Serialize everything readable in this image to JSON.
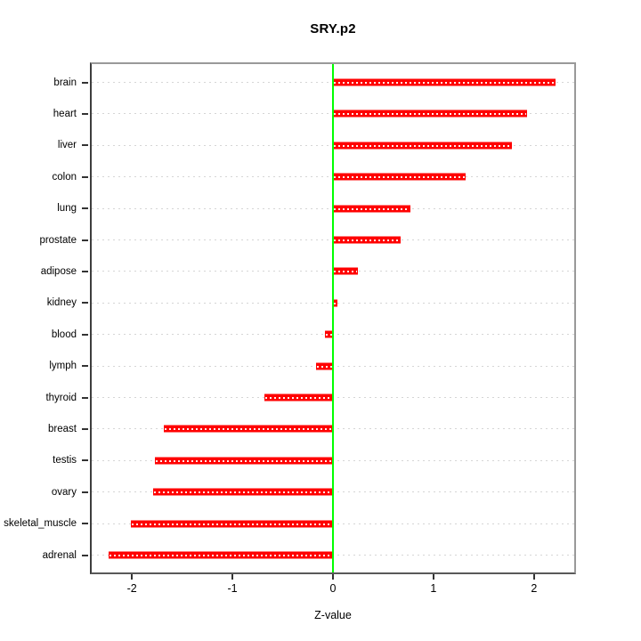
{
  "title": "SRY.p2",
  "chart_data": {
    "type": "bar",
    "orientation": "horizontal",
    "title": "SRY.p2",
    "xlabel": "Z-value",
    "ylabel": "",
    "categories": [
      "brain",
      "heart",
      "liver",
      "colon",
      "lung",
      "prostate",
      "adipose",
      "kidney",
      "blood",
      "lymph",
      "thyroid",
      "breast",
      "testis",
      "ovary",
      "skeletal_muscle",
      "adrenal"
    ],
    "values": [
      2.21,
      1.93,
      1.78,
      1.32,
      0.77,
      0.67,
      0.25,
      0.04,
      -0.08,
      -0.17,
      -0.68,
      -1.68,
      -1.77,
      -1.79,
      -2.01,
      -2.23
    ],
    "xlim": [
      -2.4,
      2.4
    ],
    "x_ticks": [
      "-2",
      "-1",
      "0",
      "1",
      "2"
    ],
    "x_tick_values": [
      -2,
      -1,
      0,
      1,
      2
    ],
    "bar_color": "#ff0000",
    "bar_center_dash_color": "#ffffff",
    "zero_line_color": "#00ff00",
    "gridline_color": "#d5d5d5",
    "gridline_style": "dotted",
    "box_color": "#999999",
    "legend": "none"
  }
}
